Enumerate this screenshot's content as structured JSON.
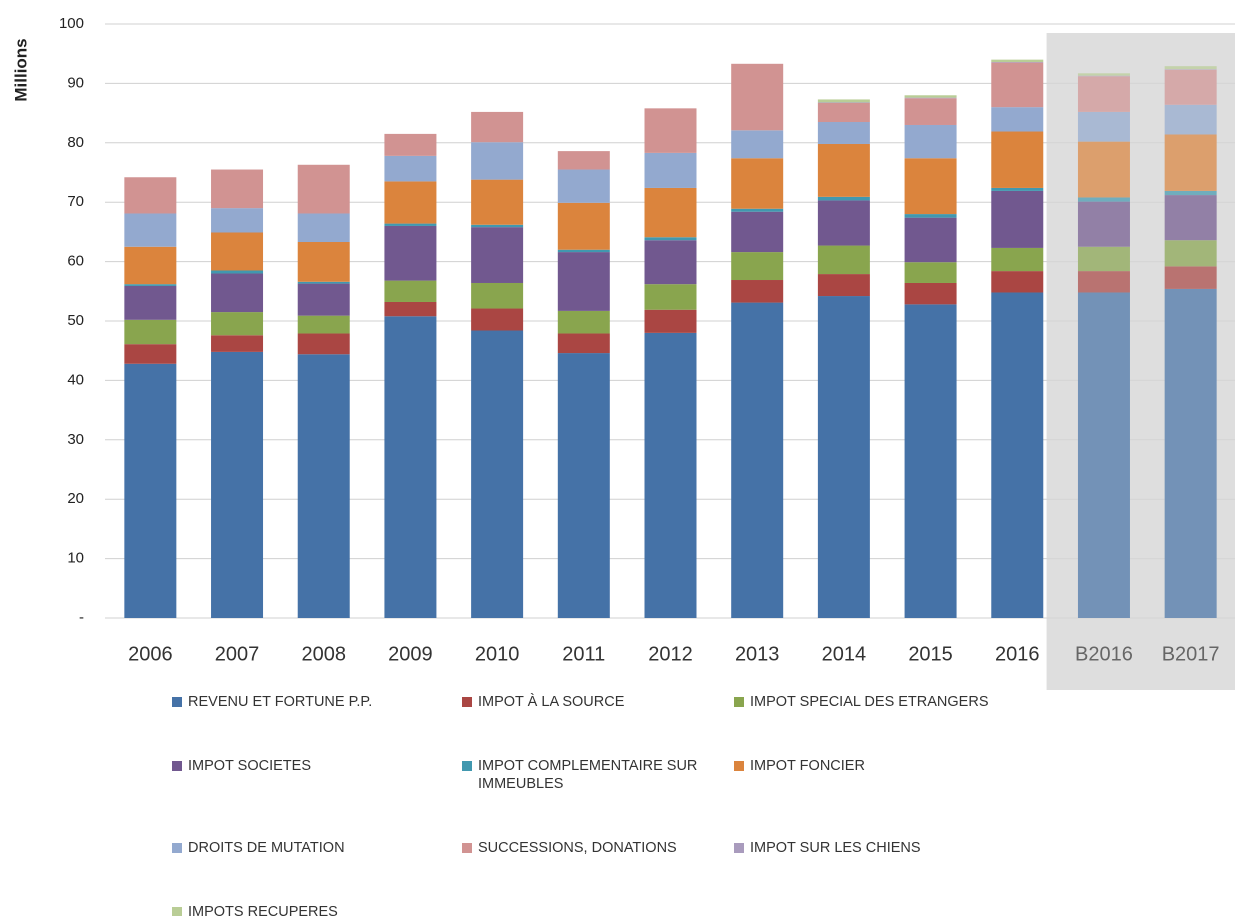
{
  "chart_data": {
    "type": "stacked_bar",
    "y_label": "Millions",
    "categories": [
      "2006",
      "2007",
      "2008",
      "2009",
      "2010",
      "2011",
      "2012",
      "2013",
      "2014",
      "2015",
      "2016",
      "B2016",
      "B2017"
    ],
    "ylim": [
      0,
      100
    ],
    "yticks": [
      {
        "value": 0,
        "label": "-"
      },
      10,
      20,
      30,
      40,
      50,
      60,
      70,
      80,
      90,
      100
    ],
    "grid": true,
    "series": [
      {
        "name": "REVENU ET FORTUNE P.P.",
        "color": "#4572a7",
        "values": [
          42.8,
          44.8,
          44.4,
          50.8,
          48.4,
          44.6,
          48.0,
          53.1,
          54.2,
          52.8,
          54.8,
          54.8,
          55.4
        ]
      },
      {
        "name": "IMPOT À LA SOURCE",
        "color": "#aa4643",
        "values": [
          3.3,
          2.8,
          3.5,
          2.4,
          3.7,
          3.3,
          3.9,
          3.8,
          3.7,
          3.6,
          3.6,
          3.6,
          3.8
        ]
      },
      {
        "name": "IMPOT SPECIAL DES ETRANGERS",
        "color": "#89a54e",
        "values": [
          4.1,
          3.9,
          3.0,
          3.6,
          4.3,
          3.8,
          4.3,
          4.7,
          4.8,
          3.5,
          3.9,
          4.1,
          4.4
        ]
      },
      {
        "name": "IMPOT SOCIETES",
        "color": "#71588f",
        "values": [
          5.7,
          6.5,
          5.4,
          9.2,
          9.4,
          9.9,
          7.4,
          6.8,
          7.6,
          7.5,
          9.6,
          7.6,
          7.6
        ]
      },
      {
        "name": "IMPOT COMPLEMENTAIRE SUR IMMEUBLES",
        "color": "#4198af",
        "values": [
          0.3,
          0.5,
          0.3,
          0.4,
          0.4,
          0.4,
          0.5,
          0.5,
          0.6,
          0.6,
          0.5,
          0.7,
          0.7
        ]
      },
      {
        "name": "IMPOT FONCIER",
        "color": "#db843d",
        "values": [
          6.3,
          6.4,
          6.7,
          7.1,
          7.6,
          7.9,
          8.3,
          8.5,
          8.9,
          9.4,
          9.5,
          9.4,
          9.5
        ]
      },
      {
        "name": "DROITS DE MUTATION",
        "color": "#93a9cf",
        "values": [
          5.6,
          4.1,
          4.8,
          4.3,
          6.3,
          5.6,
          5.9,
          4.7,
          3.7,
          5.6,
          4.1,
          5.0,
          5.0
        ]
      },
      {
        "name": "SUCCESSIONS, DONATIONS",
        "color": "#d19392",
        "values": [
          6.1,
          6.5,
          8.2,
          3.7,
          5.1,
          3.1,
          7.5,
          11.2,
          3.2,
          4.5,
          7.5,
          6.0,
          5.9
        ]
      },
      {
        "name": "IMPOT SUR LES CHIENS",
        "color": "#a99bbd",
        "values": [
          0,
          0,
          0,
          0,
          0,
          0,
          0,
          0,
          0.1,
          0.1,
          0.1,
          0.1,
          0.1
        ]
      },
      {
        "name": "IMPOTS RECUPERES",
        "color": "#b9cd96",
        "values": [
          0,
          0,
          0,
          0,
          0,
          0,
          0,
          0,
          0.5,
          0.4,
          0.4,
          0.4,
          0.5
        ]
      }
    ]
  }
}
